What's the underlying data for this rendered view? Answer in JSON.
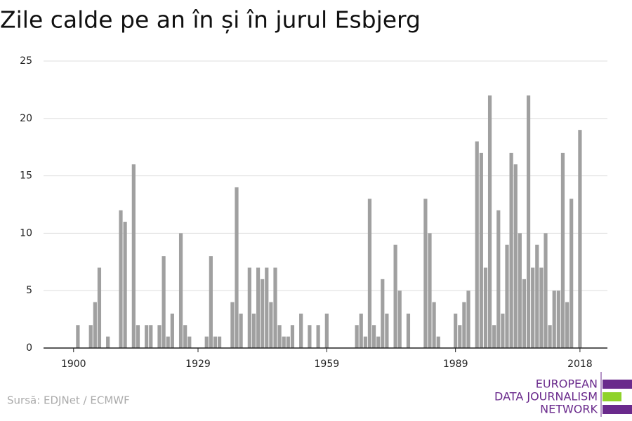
{
  "chart_data": {
    "type": "bar",
    "title": "Zile calde pe an în și în jurul Esbjerg",
    "source": "Sursă: EDJNet / ECMWF",
    "logo": [
      "EUROPEAN",
      "DATA JOURNALISM",
      "NETWORK"
    ],
    "color": "#a0a0a0",
    "x": [
      1901,
      1904,
      1905,
      1906,
      1908,
      1911,
      1912,
      1914,
      1915,
      1917,
      1918,
      1920,
      1921,
      1922,
      1923,
      1925,
      1926,
      1927,
      1931,
      1932,
      1933,
      1934,
      1937,
      1938,
      1939,
      1941,
      1942,
      1943,
      1944,
      1945,
      1946,
      1947,
      1948,
      1949,
      1950,
      1951,
      1953,
      1955,
      1957,
      1959,
      1966,
      1967,
      1968,
      1969,
      1970,
      1971,
      1972,
      1973,
      1975,
      1976,
      1978,
      1982,
      1983,
      1984,
      1985,
      1989,
      1990,
      1991,
      1992,
      1994,
      1995,
      1996,
      1997,
      1998,
      1999,
      2000,
      2001,
      2002,
      2003,
      2004,
      2005,
      2006,
      2007,
      2008,
      2009,
      2010,
      2011,
      2012,
      2013,
      2014,
      2015,
      2016,
      2018
    ],
    "values": [
      2,
      2,
      4,
      7,
      1,
      12,
      11,
      16,
      2,
      2,
      2,
      2,
      8,
      1,
      3,
      10,
      2,
      1,
      1,
      8,
      1,
      1,
      4,
      14,
      3,
      7,
      3,
      7,
      6,
      7,
      4,
      7,
      2,
      1,
      1,
      2,
      3,
      2,
      2,
      3,
      2,
      3,
      1,
      13,
      2,
      1,
      6,
      3,
      9,
      5,
      3,
      13,
      10,
      4,
      1,
      3,
      2,
      4,
      5,
      18,
      17,
      7,
      22,
      2,
      12,
      3,
      9,
      17,
      16,
      10,
      6,
      22,
      7,
      9,
      7,
      10,
      2,
      5,
      5,
      17,
      4,
      13,
      19
    ],
    "xlim": [
      1893,
      2024.4
    ],
    "xticks": [
      1900,
      1929,
      1959,
      1989,
      2018
    ],
    "ylim": [
      0,
      25
    ],
    "yticks": [
      0,
      5,
      10,
      15,
      20,
      25
    ],
    "grid": true
  }
}
